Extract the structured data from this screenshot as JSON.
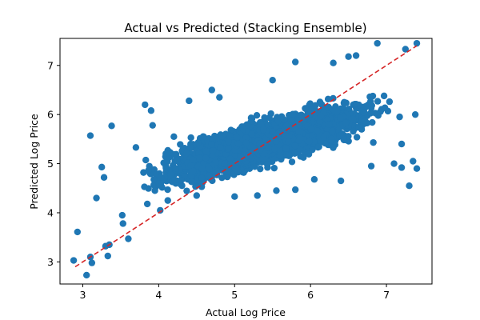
{
  "chart_data": {
    "type": "scatter",
    "title": "Actual vs Predicted (Stacking Ensemble)",
    "xlabel": "Actual Log Price",
    "ylabel": "Predicted Log Price",
    "xlim": [
      2.7,
      7.6
    ],
    "ylim": [
      2.55,
      7.55
    ],
    "x_ticks": [
      3,
      4,
      5,
      6,
      7
    ],
    "y_ticks": [
      3,
      4,
      5,
      6,
      7
    ],
    "grid": false,
    "colors": {
      "points": "#1f77b4",
      "reference_line": "#d62728"
    },
    "reference_line": {
      "name": "y = x",
      "style": "dashed",
      "x": [
        2.9,
        7.4
      ],
      "y": [
        2.9,
        7.4
      ]
    },
    "cloud_sample_note": "dense cloud of several thousand points centred along the diagonal; representative points listed below",
    "series": [
      {
        "points": [
          [
            2.88,
            3.03
          ],
          [
            2.93,
            3.61
          ],
          [
            3.05,
            2.73
          ],
          [
            3.1,
            3.1
          ],
          [
            3.12,
            2.98
          ],
          [
            3.1,
            5.57
          ],
          [
            3.18,
            4.3
          ],
          [
            3.25,
            4.93
          ],
          [
            3.28,
            4.72
          ],
          [
            3.3,
            3.32
          ],
          [
            3.33,
            3.12
          ],
          [
            3.35,
            3.35
          ],
          [
            3.38,
            5.77
          ],
          [
            3.52,
            3.95
          ],
          [
            3.53,
            3.78
          ],
          [
            3.6,
            3.47
          ],
          [
            3.7,
            5.33
          ],
          [
            3.8,
            4.82
          ],
          [
            3.82,
            6.2
          ],
          [
            3.85,
            4.18
          ],
          [
            3.9,
            6.08
          ],
          [
            3.92,
            5.78
          ],
          [
            3.95,
            4.45
          ],
          [
            4.02,
            4.05
          ],
          [
            4.12,
            4.25
          ],
          [
            4.2,
            5.55
          ],
          [
            4.4,
            6.28
          ],
          [
            4.5,
            4.35
          ],
          [
            4.7,
            6.5
          ],
          [
            4.8,
            6.35
          ],
          [
            5.0,
            4.33
          ],
          [
            5.3,
            4.35
          ],
          [
            5.5,
            6.7
          ],
          [
            5.55,
            4.45
          ],
          [
            5.8,
            7.07
          ],
          [
            5.8,
            4.47
          ],
          [
            6.05,
            4.68
          ],
          [
            6.3,
            7.05
          ],
          [
            6.4,
            4.65
          ],
          [
            6.5,
            7.18
          ],
          [
            6.6,
            7.2
          ],
          [
            6.8,
            4.95
          ],
          [
            6.88,
            7.45
          ],
          [
            7.1,
            5.0
          ],
          [
            7.2,
            4.92
          ],
          [
            7.25,
            7.33
          ],
          [
            7.3,
            4.55
          ],
          [
            7.35,
            5.05
          ],
          [
            7.4,
            7.45
          ],
          [
            7.4,
            4.9
          ],
          [
            7.38,
            6.0
          ],
          [
            7.2,
            5.4
          ]
        ],
        "band": {
          "x_start": 3.4,
          "x_end": 7.4,
          "center_intercept": 3.05,
          "center_slope": 0.44,
          "spread": 0.42,
          "count": 2600
        }
      }
    ]
  }
}
